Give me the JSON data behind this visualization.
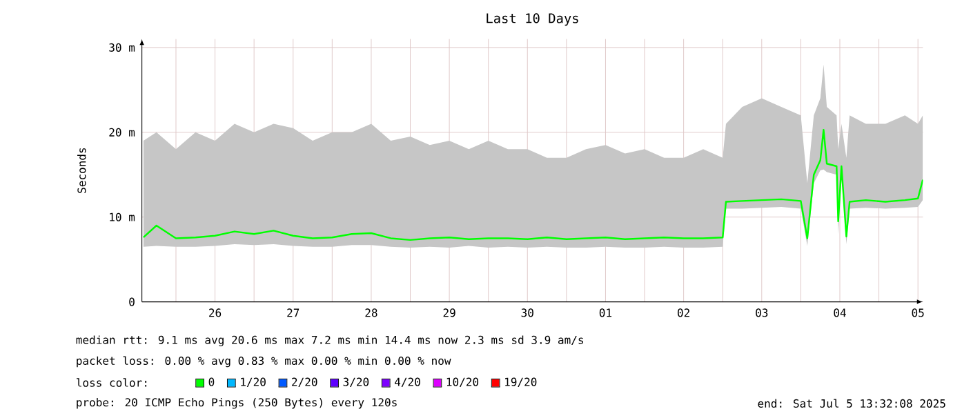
{
  "chart_data": {
    "type": "line",
    "title": "Last 10 Days",
    "ylabel": "Seconds",
    "x": [
      "2025-06-25T14:00",
      "2025-06-25T18:00",
      "2025-06-26T00:00",
      "2025-06-26T06:00",
      "2025-06-26T12:00",
      "2025-06-26T18:00",
      "2025-06-27T00:00",
      "2025-06-27T06:00",
      "2025-06-27T12:00",
      "2025-06-27T18:00",
      "2025-06-28T00:00",
      "2025-06-28T06:00",
      "2025-06-28T12:00",
      "2025-06-28T18:00",
      "2025-06-29T00:00",
      "2025-06-29T06:00",
      "2025-06-29T12:00",
      "2025-06-29T18:00",
      "2025-06-30T00:00",
      "2025-06-30T06:00",
      "2025-06-30T12:00",
      "2025-06-30T18:00",
      "2025-07-01T00:00",
      "2025-07-01T06:00",
      "2025-07-01T12:00",
      "2025-07-01T18:00",
      "2025-07-02T00:00",
      "2025-07-02T06:00",
      "2025-07-02T12:00",
      "2025-07-02T18:00",
      "2025-07-03T00:00",
      "2025-07-03T01:00",
      "2025-07-03T06:00",
      "2025-07-03T12:00",
      "2025-07-03T18:00",
      "2025-07-04T00:00",
      "2025-07-04T02:00",
      "2025-07-04T04:00",
      "2025-07-04T06:00",
      "2025-07-04T07:00",
      "2025-07-04T08:00",
      "2025-07-04T11:00",
      "2025-07-04T11:30",
      "2025-07-04T12:30",
      "2025-07-04T14:00",
      "2025-07-04T15:00",
      "2025-07-04T20:00",
      "2025-07-05T02:00",
      "2025-07-05T08:00",
      "2025-07-05T12:00",
      "2025-07-05T13:30"
    ],
    "series": [
      {
        "name": "0",
        "color": "#00ff00",
        "values": [
          7.6,
          9,
          7.5,
          7.6,
          7.8,
          8.3,
          8,
          8.4,
          7.8,
          7.5,
          7.6,
          8,
          8.1,
          7.5,
          7.3,
          7.5,
          7.6,
          7.4,
          7.5,
          7.5,
          7.4,
          7.6,
          7.4,
          7.5,
          7.6,
          7.4,
          7.5,
          7.6,
          7.5,
          7.5,
          7.6,
          11.8,
          11.9,
          12,
          12.1,
          11.9,
          7.5,
          15,
          16.7,
          20.3,
          16.3,
          16,
          9.5,
          16,
          7.7,
          11.8,
          12,
          11.8,
          12,
          12.2,
          14.4
        ],
        "lower": [
          6.5,
          6.6,
          6.5,
          6.5,
          6.6,
          6.8,
          6.7,
          6.8,
          6.6,
          6.5,
          6.5,
          6.7,
          6.7,
          6.5,
          6.4,
          6.5,
          6.4,
          6.6,
          6.4,
          6.5,
          6.4,
          6.5,
          6.4,
          6.4,
          6.5,
          6.4,
          6.4,
          6.5,
          6.4,
          6.4,
          6.5,
          11,
          11,
          11.1,
          11.2,
          11,
          6.6,
          14,
          15.5,
          15.6,
          15.3,
          15,
          8,
          15,
          6.8,
          11,
          11.1,
          11,
          11.1,
          11.2,
          12
        ],
        "upper": [
          19,
          20,
          18,
          20,
          19,
          21,
          20,
          21,
          20.5,
          19,
          20,
          20,
          21,
          19,
          19.5,
          18.5,
          19,
          18,
          19,
          18,
          18,
          17,
          17,
          18,
          18.5,
          17.5,
          18,
          17,
          17,
          18,
          17,
          21,
          23,
          24,
          23,
          22,
          14,
          22,
          24,
          28,
          23,
          22,
          18,
          21,
          17,
          22,
          21,
          21,
          22,
          21,
          22
        ]
      },
      {
        "name": "1/20",
        "color": "#00b8ff",
        "values": [
          null,
          null,
          null,
          null,
          null,
          null,
          null,
          null,
          null,
          null,
          null,
          null,
          null,
          null,
          null,
          null,
          null,
          null,
          null,
          null,
          null,
          null,
          null,
          null,
          null,
          null,
          null,
          null,
          null,
          null,
          null,
          null,
          null,
          null,
          null,
          null,
          null,
          null,
          null,
          null,
          null,
          null,
          null,
          null,
          null,
          null,
          null,
          null,
          null,
          null,
          null
        ]
      },
      {
        "name": "2/20",
        "color": "#0059ff",
        "values": [
          null,
          null,
          null,
          null,
          null,
          null,
          null,
          null,
          null,
          null,
          null,
          null,
          null,
          null,
          null,
          null,
          null,
          null,
          null,
          null,
          null,
          null,
          null,
          null,
          null,
          null,
          null,
          null,
          null,
          null,
          null,
          null,
          null,
          null,
          null,
          null,
          null,
          null,
          null,
          null,
          null,
          null,
          null,
          null,
          null,
          null,
          null,
          null,
          null,
          null,
          null
        ]
      },
      {
        "name": "3/20",
        "color": "#5e00ff",
        "values": [
          null,
          null,
          null,
          null,
          null,
          null,
          null,
          null,
          null,
          null,
          null,
          null,
          null,
          null,
          null,
          null,
          null,
          null,
          null,
          null,
          null,
          null,
          null,
          null,
          null,
          null,
          null,
          null,
          null,
          null,
          null,
          null,
          null,
          null,
          null,
          null,
          null,
          null,
          null,
          null,
          null,
          null,
          null,
          null,
          null,
          null,
          null,
          null,
          null,
          null,
          null
        ]
      },
      {
        "name": "4/20",
        "color": "#7e00ff",
        "values": [
          null,
          null,
          null,
          null,
          null,
          null,
          null,
          null,
          null,
          null,
          null,
          null,
          null,
          null,
          null,
          null,
          null,
          null,
          null,
          null,
          null,
          null,
          null,
          null,
          null,
          null,
          null,
          null,
          null,
          null,
          null,
          null,
          null,
          null,
          null,
          null,
          null,
          null,
          null,
          null,
          null,
          null,
          null,
          null,
          null,
          null,
          null,
          null,
          null,
          null,
          null
        ]
      },
      {
        "name": "10/20",
        "color": "#dd00ff",
        "values": [
          null,
          null,
          null,
          null,
          null,
          null,
          null,
          null,
          null,
          null,
          null,
          null,
          null,
          null,
          null,
          null,
          null,
          null,
          null,
          null,
          null,
          null,
          null,
          null,
          null,
          null,
          null,
          null,
          null,
          null,
          null,
          null,
          null,
          null,
          null,
          null,
          null,
          null,
          null,
          null,
          null,
          null,
          null,
          null,
          null,
          null,
          null,
          null,
          null,
          null,
          null
        ]
      },
      {
        "name": "19/20",
        "color": "#ff0000",
        "values": [
          null,
          null,
          null,
          null,
          null,
          null,
          null,
          null,
          null,
          null,
          null,
          null,
          null,
          null,
          null,
          null,
          null,
          null,
          null,
          null,
          null,
          null,
          null,
          null,
          null,
          null,
          null,
          null,
          null,
          null,
          null,
          null,
          null,
          null,
          null,
          null,
          null,
          null,
          null,
          null,
          null,
          null,
          null,
          null,
          null,
          null,
          null,
          null,
          null,
          null,
          null
        ]
      }
    ],
    "xlim": [
      "2025-06-25T13:32",
      "2025-07-05T13:32"
    ],
    "xticks": [
      {
        "value": "2025-06-26T00:00",
        "label": null
      },
      {
        "value": "2025-06-26T12:00",
        "label": "26"
      },
      {
        "value": "2025-06-27T00:00",
        "label": null
      },
      {
        "value": "2025-06-27T12:00",
        "label": "27"
      },
      {
        "value": "2025-06-28T00:00",
        "label": null
      },
      {
        "value": "2025-06-28T12:00",
        "label": "28"
      },
      {
        "value": "2025-06-29T00:00",
        "label": null
      },
      {
        "value": "2025-06-29T12:00",
        "label": "29"
      },
      {
        "value": "2025-06-30T00:00",
        "label": null
      },
      {
        "value": "2025-06-30T12:00",
        "label": "30"
      },
      {
        "value": "2025-07-01T00:00",
        "label": null
      },
      {
        "value": "2025-07-01T12:00",
        "label": "01"
      },
      {
        "value": "2025-07-02T00:00",
        "label": null
      },
      {
        "value": "2025-07-02T12:00",
        "label": "02"
      },
      {
        "value": "2025-07-03T00:00",
        "label": null
      },
      {
        "value": "2025-07-03T12:00",
        "label": "03"
      },
      {
        "value": "2025-07-04T00:00",
        "label": null
      },
      {
        "value": "2025-07-04T12:00",
        "label": "04"
      },
      {
        "value": "2025-07-05T00:00",
        "label": null
      },
      {
        "value": "2025-07-05T12:00",
        "label": "05"
      }
    ],
    "ylim": [
      0,
      31
    ],
    "yticks": [
      0,
      {
        "value": 10,
        "label": "10 m"
      },
      {
        "value": 20,
        "label": "20 m"
      },
      {
        "value": 30,
        "label": "30 m"
      }
    ],
    "grid": true,
    "legend": "bottom",
    "annotations": [
      "median rtt:  9.1 ms avg  20.6 ms max  7.2 ms min  14.4 ms now  2.3 ms sd  3.9  am/s",
      "packet loss: 0.00 % avg  0.83 % max  0.00 % min  0.00 % now",
      "loss color:",
      "probe: 20 ICMP Echo Pings (250 Bytes) every 120s",
      "end: Sat Jul  5 13:32:08 2025"
    ]
  }
}
